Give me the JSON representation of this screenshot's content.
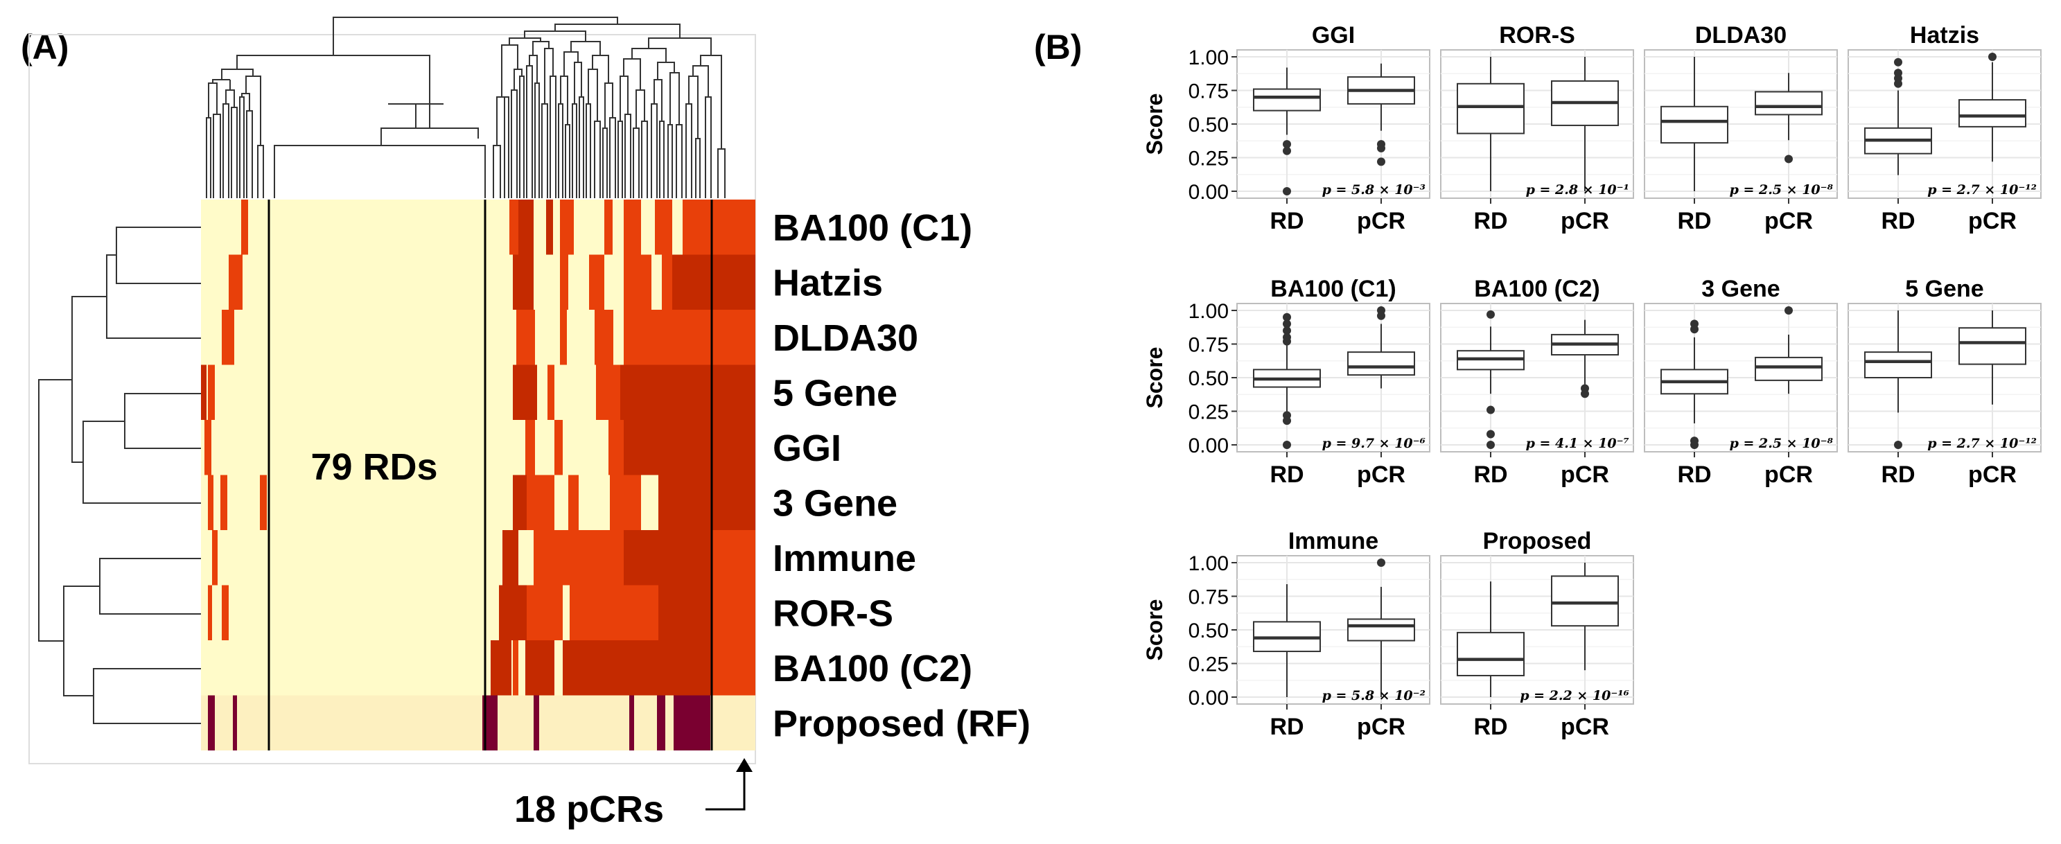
{
  "panel_a": {
    "label": "(A)",
    "annotation_rds": "79 RDs",
    "annotation_pcrs": "18 pCRs",
    "colors": {
      "background": "#fffbc9",
      "proposed_background": "#fdf0c0",
      "level1": "#f7c4a0",
      "level2": "#f4a020",
      "level3": "#e8400a",
      "level4": "#c42a00",
      "level5": "#7a0030",
      "tree": "#333333"
    },
    "rows": [
      "BA100 (C1)",
      "Hatzis",
      "DLDA30",
      "5 Gene",
      "GGI",
      "3 Gene",
      "Immune",
      "ROR-S",
      "BA100 (C2)",
      "Proposed (RF)"
    ]
  },
  "panel_b": {
    "label": "(B)",
    "y_axis_label": "Score",
    "x_categories": [
      "RD",
      "pCR"
    ],
    "y_ticks": [
      "0.00",
      "0.25",
      "0.50",
      "0.75",
      "1.00"
    ],
    "ylim": [
      0,
      1
    ]
  },
  "chart_data": {
    "type": "boxplot",
    "ylabel": "Score",
    "categories": [
      "RD",
      "pCR"
    ],
    "ylim": [
      0,
      1
    ],
    "panels": [
      {
        "title": "GGI",
        "p_text": "p = 5.8 × 10⁻³",
        "RD": {
          "min": 0.42,
          "q1": 0.6,
          "median": 0.7,
          "q3": 0.76,
          "max": 0.92,
          "outliers": [
            0.35,
            0.3,
            0.0
          ]
        },
        "pCR": {
          "min": 0.45,
          "q1": 0.65,
          "median": 0.75,
          "q3": 0.85,
          "max": 0.95,
          "outliers": [
            0.35,
            0.32,
            0.22
          ]
        }
      },
      {
        "title": "ROR-S",
        "p_text": "p = 2.8 × 10⁻¹",
        "RD": {
          "min": 0.0,
          "q1": 0.43,
          "median": 0.63,
          "q3": 0.8,
          "max": 1.0,
          "outliers": []
        },
        "pCR": {
          "min": 0.0,
          "q1": 0.49,
          "median": 0.66,
          "q3": 0.82,
          "max": 1.0,
          "outliers": []
        }
      },
      {
        "title": "DLDA30",
        "p_text": "p = 2.5 × 10⁻⁸",
        "RD": {
          "min": 0.0,
          "q1": 0.36,
          "median": 0.52,
          "q3": 0.63,
          "max": 1.0,
          "outliers": []
        },
        "pCR": {
          "min": 0.38,
          "q1": 0.57,
          "median": 0.63,
          "q3": 0.74,
          "max": 0.88,
          "outliers": [
            0.24
          ]
        }
      },
      {
        "title": "Hatzis",
        "p_text": "p = 2.7 × 10⁻¹²",
        "RD": {
          "min": 0.12,
          "q1": 0.28,
          "median": 0.38,
          "q3": 0.47,
          "max": 0.75,
          "outliers": [
            0.96,
            0.88,
            0.84,
            0.8
          ]
        },
        "pCR": {
          "min": 0.22,
          "q1": 0.48,
          "median": 0.56,
          "q3": 0.68,
          "max": 0.96,
          "outliers": [
            1.0
          ]
        }
      },
      {
        "title": "BA100 (C1)",
        "p_text": "p = 9.7 × 10⁻⁶",
        "RD": {
          "min": 0.24,
          "q1": 0.43,
          "median": 0.49,
          "q3": 0.56,
          "max": 0.75,
          "outliers": [
            0.95,
            0.9,
            0.85,
            0.8,
            0.77,
            0.22,
            0.18,
            0.0
          ]
        },
        "pCR": {
          "min": 0.42,
          "q1": 0.52,
          "median": 0.58,
          "q3": 0.69,
          "max": 0.9,
          "outliers": [
            1.0,
            0.96
          ]
        }
      },
      {
        "title": "BA100 (C2)",
        "p_text": "p = 4.1 × 10⁻⁷",
        "RD": {
          "min": 0.38,
          "q1": 0.56,
          "median": 0.64,
          "q3": 0.7,
          "max": 0.88,
          "outliers": [
            0.97,
            0.26,
            0.08,
            0.0
          ]
        },
        "pCR": {
          "min": 0.45,
          "q1": 0.67,
          "median": 0.75,
          "q3": 0.82,
          "max": 0.93,
          "outliers": [
            0.42,
            0.38
          ]
        }
      },
      {
        "title": "3 Gene",
        "p_text": "p = 2.5 × 10⁻⁸",
        "RD": {
          "min": 0.16,
          "q1": 0.38,
          "median": 0.47,
          "q3": 0.56,
          "max": 0.8,
          "outliers": [
            0.9,
            0.86,
            0.03,
            0.0
          ]
        },
        "pCR": {
          "min": 0.38,
          "q1": 0.48,
          "median": 0.58,
          "q3": 0.65,
          "max": 0.82,
          "outliers": [
            1.0
          ]
        }
      },
      {
        "title": "5 Gene",
        "p_text": "p = 2.7 × 10⁻¹²",
        "RD": {
          "min": 0.24,
          "q1": 0.5,
          "median": 0.62,
          "q3": 0.69,
          "max": 1.0,
          "outliers": [
            0.0
          ]
        },
        "pCR": {
          "min": 0.3,
          "q1": 0.6,
          "median": 0.76,
          "q3": 0.87,
          "max": 1.0,
          "outliers": []
        }
      },
      {
        "title": "Immune",
        "p_text": "p = 5.8 × 10⁻²",
        "RD": {
          "min": 0.0,
          "q1": 0.34,
          "median": 0.44,
          "q3": 0.56,
          "max": 0.84,
          "outliers": []
        },
        "pCR": {
          "min": 0.0,
          "q1": 0.42,
          "median": 0.53,
          "q3": 0.58,
          "max": 0.82,
          "outliers": [
            1.0
          ]
        }
      },
      {
        "title": "Proposed",
        "p_text": "p = 2.2 × 10⁻¹⁶",
        "RD": {
          "min": 0.0,
          "q1": 0.16,
          "median": 0.28,
          "q3": 0.48,
          "max": 0.86,
          "outliers": []
        },
        "pCR": {
          "min": 0.2,
          "q1": 0.53,
          "median": 0.7,
          "q3": 0.9,
          "max": 1.0,
          "outliers": []
        }
      }
    ]
  }
}
